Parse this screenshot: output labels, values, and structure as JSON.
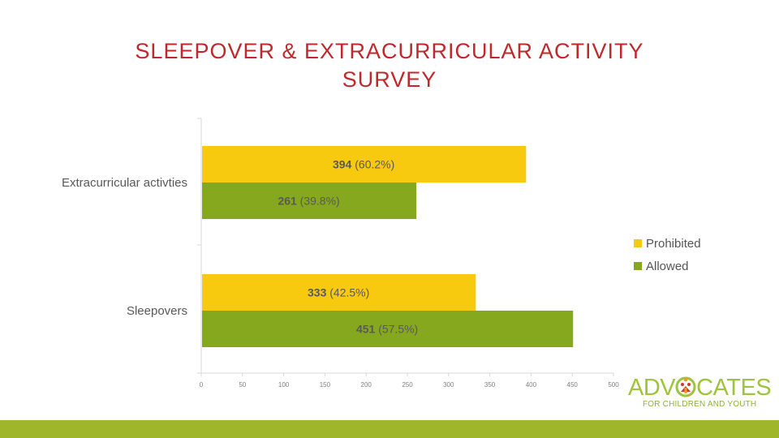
{
  "slide": {
    "title_line1": "SLEEPOVER & EXTRACURRICULAR ACTIVITY",
    "title_line2": "SURVEY"
  },
  "logo": {
    "main_pre": "ADV",
    "main_post": "CATES",
    "sub": "FOR CHILDREN AND YOUTH"
  },
  "colors": {
    "title": "#c0282b",
    "prohibited": "#f7c90f",
    "allowed": "#86a81f",
    "band": "#9fb62b",
    "logo": "#9dc43c"
  },
  "chart_data": {
    "type": "bar",
    "orientation": "horizontal",
    "categories": [
      "Extracurricular activties",
      "Sleepovers"
    ],
    "series": [
      {
        "name": "Prohibited",
        "values": [
          394,
          333
        ],
        "percent_labels": [
          "(60.2%)",
          "(42.5%)"
        ]
      },
      {
        "name": "Allowed",
        "values": [
          261,
          451
        ],
        "percent_labels": [
          "(39.8%)",
          "(57.5%)"
        ]
      }
    ],
    "xticks": [
      0,
      50,
      100,
      150,
      200,
      250,
      300,
      350,
      400,
      450,
      500
    ],
    "xlim": [
      0,
      500
    ],
    "legend_position": "right",
    "grid": false
  }
}
